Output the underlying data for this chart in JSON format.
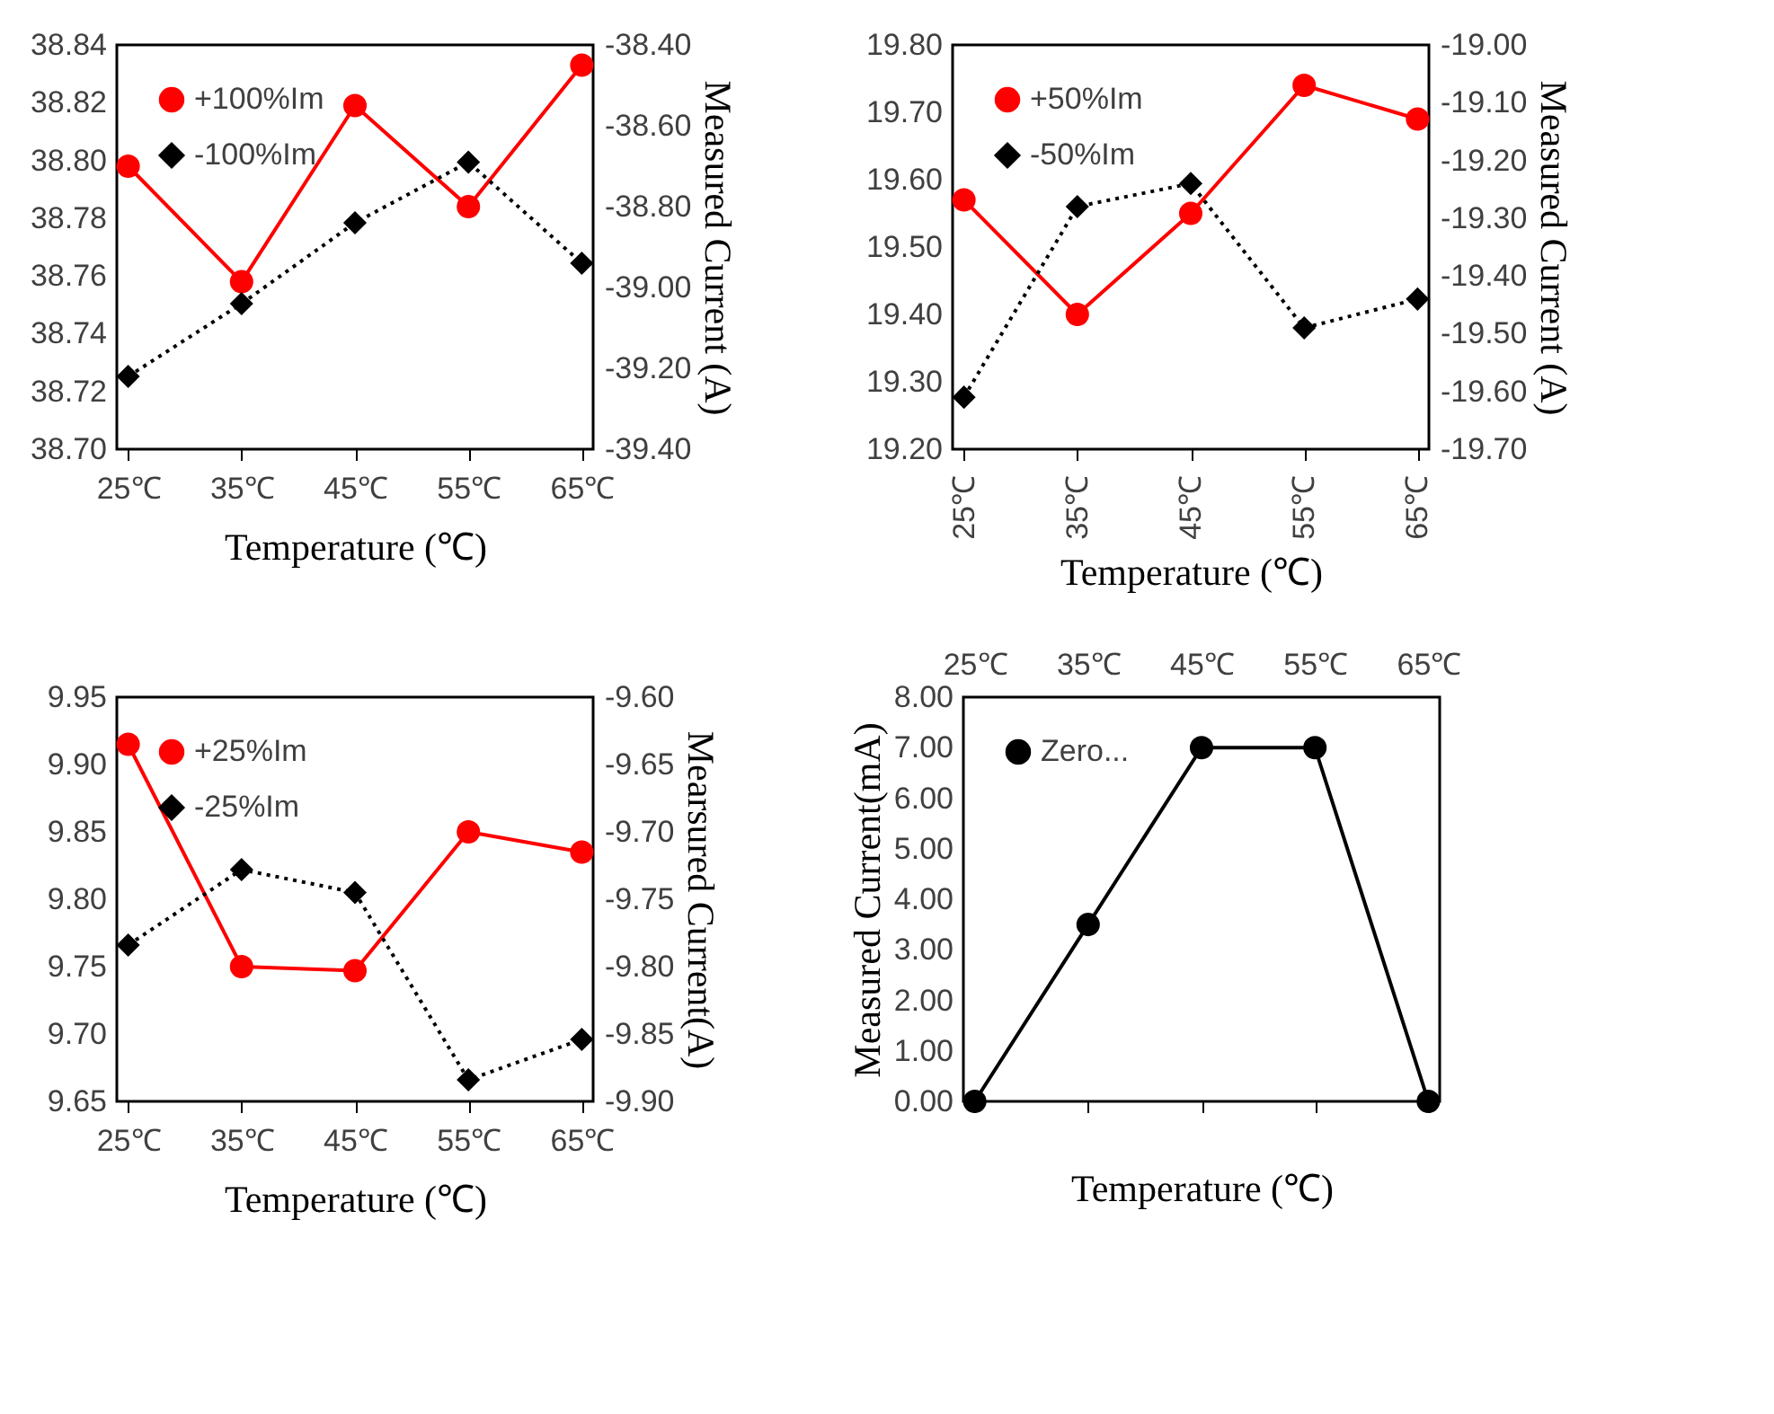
{
  "chart_data": [
    {
      "type": "line",
      "categories": [
        "25℃",
        "35℃",
        "45℃",
        "55℃",
        "65℃"
      ],
      "xlabel": "Temperature (℃)",
      "y2label": "Measured Current (A)",
      "ylim": [
        38.7,
        38.84
      ],
      "yticks": [
        {
          "value": 38.7,
          "label": "38.70"
        },
        38.72,
        38.74,
        38.76,
        38.78,
        {
          "value": 38.8,
          "label": "38.80"
        },
        38.82,
        38.84
      ],
      "y2lim": [
        -39.4,
        -38.4
      ],
      "y2ticks": [
        {
          "value": -39.4,
          "label": "-39.40"
        },
        {
          "value": -39.2,
          "label": "-39.20"
        },
        {
          "value": -39,
          "label": "-39.00"
        },
        {
          "value": -38.8,
          "label": "-38.80"
        },
        {
          "value": -38.6,
          "label": "-38.60"
        },
        {
          "value": -38.4,
          "label": "-38.40"
        }
      ],
      "legend": "top left",
      "grid": false,
      "series": [
        {
          "name": "+100%Im",
          "color": "#ff0000",
          "marker": "circle",
          "line_style": "solid",
          "values": [
            38.798,
            38.758,
            38.819,
            38.784,
            38.833
          ]
        },
        {
          "name": "-100%Im",
          "color": "#000000",
          "marker": "diamond",
          "line_style": "dotted",
          "axis": "y2",
          "values": [
            -39.22,
            -39.04,
            -38.84,
            -38.69,
            -38.94
          ]
        }
      ]
    },
    {
      "type": "line",
      "categories": [
        "25℃",
        "35℃",
        "45℃",
        "55℃",
        "65℃"
      ],
      "xlabel": "Temperature (℃)",
      "y2label": "Measured Current (A)",
      "ylim": [
        19.2,
        19.8
      ],
      "yticks": [
        {
          "value": 19.2,
          "label": "19.20"
        },
        {
          "value": 19.3,
          "label": "19.30"
        },
        {
          "value": 19.4,
          "label": "19.40"
        },
        {
          "value": 19.5,
          "label": "19.50"
        },
        {
          "value": 19.6,
          "label": "19.60"
        },
        {
          "value": 19.7,
          "label": "19.70"
        },
        {
          "value": 19.8,
          "label": "19.80"
        }
      ],
      "y2lim": [
        -19.7,
        -19.0
      ],
      "y2ticks": [
        {
          "value": -19.7,
          "label": "-19.70"
        },
        {
          "value": -19.6,
          "label": "-19.60"
        },
        {
          "value": -19.5,
          "label": "-19.50"
        },
        {
          "value": -19.4,
          "label": "-19.40"
        },
        {
          "value": -19.3,
          "label": "-19.30"
        },
        {
          "value": -19.2,
          "label": "-19.20"
        },
        {
          "value": -19.1,
          "label": "-19.10"
        },
        {
          "value": -19.0,
          "label": "-19.00"
        }
      ],
      "legend": "top left",
      "grid": false,
      "series": [
        {
          "name": "+50%Im",
          "color": "#ff0000",
          "marker": "circle",
          "line_style": "solid",
          "values": [
            19.57,
            19.4,
            19.55,
            19.74,
            19.69
          ]
        },
        {
          "name": "-50%Im",
          "color": "#000000",
          "marker": "diamond",
          "line_style": "dotted",
          "axis": "y2",
          "values": [
            -19.61,
            -19.28,
            -19.24,
            -19.49,
            -19.44
          ]
        }
      ]
    },
    {
      "type": "line",
      "categories": [
        "25℃",
        "35℃",
        "45℃",
        "55℃",
        "65℃"
      ],
      "xlabel": "Temperature (℃)",
      "y2label": "Mearsured Current(A)",
      "ylim": [
        9.65,
        9.95
      ],
      "yticks": [
        9.65,
        {
          "value": 9.7,
          "label": "9.70"
        },
        9.75,
        {
          "value": 9.8,
          "label": "9.80"
        },
        9.85,
        {
          "value": 9.9,
          "label": "9.90"
        },
        9.95
      ],
      "y2lim": [
        -9.9,
        -9.6
      ],
      "y2ticks": [
        {
          "value": -9.9,
          "label": "-9.90"
        },
        -9.85,
        {
          "value": -9.8,
          "label": "-9.80"
        },
        -9.75,
        {
          "value": -9.7,
          "label": "-9.70"
        },
        -9.65,
        {
          "value": -9.6,
          "label": "-9.60"
        }
      ],
      "legend": "top left",
      "grid": false,
      "series": [
        {
          "name": "+25%Im",
          "color": "#ff0000",
          "marker": "circle",
          "line_style": "solid",
          "values": [
            9.915,
            9.75,
            9.747,
            9.85,
            9.835
          ]
        },
        {
          "name": "-25%Im",
          "color": "#000000",
          "marker": "diamond",
          "line_style": "dotted",
          "axis": "y2",
          "values": [
            -9.784,
            -9.728,
            -9.745,
            -9.884,
            -9.854
          ]
        }
      ]
    },
    {
      "type": "line",
      "categories": [
        "25℃",
        "35℃",
        "45℃",
        "55℃",
        "65℃"
      ],
      "xlabel": "Temperature (℃)",
      "ylabel": "Measured Current(mA)",
      "ylim": [
        0,
        8
      ],
      "yticks": [
        {
          "value": 0,
          "label": "0.00"
        },
        {
          "value": 1,
          "label": "1.00"
        },
        {
          "value": 2,
          "label": "2.00"
        },
        {
          "value": 3,
          "label": "3.00"
        },
        {
          "value": 4,
          "label": "4.00"
        },
        {
          "value": 5,
          "label": "5.00"
        },
        {
          "value": 6,
          "label": "6.00"
        },
        {
          "value": 7,
          "label": "7.00"
        },
        {
          "value": 8,
          "label": "8.00"
        }
      ],
      "legend": "top left",
      "grid": false,
      "series": [
        {
          "name": "Zero...",
          "color": "#000000",
          "marker": "circle",
          "line_style": "solid",
          "values": [
            0,
            3.5,
            7,
            7,
            0
          ]
        }
      ]
    }
  ]
}
